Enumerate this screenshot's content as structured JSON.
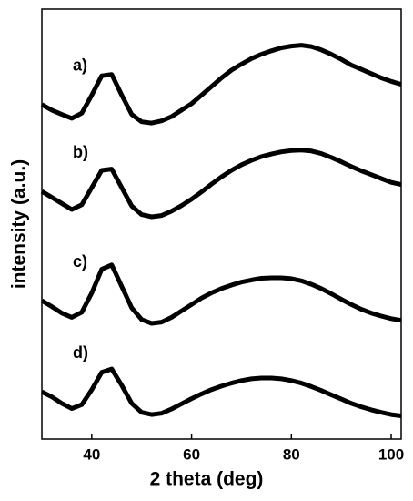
{
  "chart_data": {
    "type": "line",
    "xlabel": "2 theta (deg)",
    "ylabel": "intensity (a.u.)",
    "x": [
      30,
      32,
      34,
      36,
      38,
      40,
      42,
      44,
      46,
      48,
      50,
      52,
      54,
      56,
      58,
      60,
      62,
      64,
      66,
      68,
      70,
      72,
      74,
      76,
      78,
      80,
      82,
      84,
      86,
      88,
      90,
      92,
      94,
      96,
      98,
      100,
      102
    ],
    "series": [
      {
        "name": "a)",
        "color": "#000000",
        "values": [
          77.8,
          76.5,
          75.5,
          74.6,
          75.8,
          80,
          84.5,
          84.8,
          80,
          75.5,
          73.8,
          73.5,
          74,
          75,
          76.5,
          78,
          80,
          82,
          84,
          85.8,
          87.2,
          88.5,
          89.5,
          90.3,
          91,
          91.4,
          91.6,
          91.3,
          90.5,
          89.5,
          88.3,
          87,
          86,
          85,
          84,
          83.2,
          82.5
        ]
      },
      {
        "name": "b)",
        "color": "#000000",
        "values": [
          57.6,
          56.2,
          54.8,
          53.4,
          54.5,
          58.5,
          62.5,
          62.8,
          58.5,
          54.2,
          52.2,
          51.7,
          52,
          53,
          54.3,
          55.8,
          57.5,
          59.3,
          61,
          62.5,
          63.8,
          64.8,
          65.7,
          66.3,
          66.8,
          67.1,
          67.2,
          67,
          66.4,
          65.5,
          64.5,
          63.4,
          62.4,
          61.5,
          60.6,
          59.7,
          59.2
        ]
      },
      {
        "name": "c)",
        "color": "#000000",
        "values": [
          32.2,
          30.8,
          29.3,
          28.3,
          29.5,
          34,
          39.5,
          40.5,
          35.5,
          30.5,
          27.8,
          26.9,
          27.2,
          28.3,
          29.8,
          31.3,
          32.8,
          34,
          35,
          35.8,
          36.5,
          37,
          37.4,
          37.5,
          37.5,
          37.3,
          36.8,
          36,
          35,
          33.8,
          32.5,
          31.3,
          30.2,
          29.3,
          28.6,
          28,
          27.6
        ]
      },
      {
        "name": "d)",
        "color": "#000000",
        "values": [
          11,
          9.8,
          8.3,
          7.1,
          8,
          11.5,
          15.5,
          16.3,
          12.5,
          8.3,
          6.2,
          5.7,
          6,
          7,
          8.2,
          9.4,
          10.5,
          11.5,
          12.3,
          13,
          13.6,
          14,
          14.2,
          14.2,
          14,
          13.6,
          13,
          12.2,
          11.3,
          10.3,
          9.3,
          8.3,
          7.5,
          6.8,
          6.2,
          5.7,
          5.4
        ]
      }
    ],
    "xlim": [
      30,
      102
    ],
    "ylim": [
      0,
      100
    ],
    "xticks": [
      40,
      60,
      80,
      100
    ]
  }
}
